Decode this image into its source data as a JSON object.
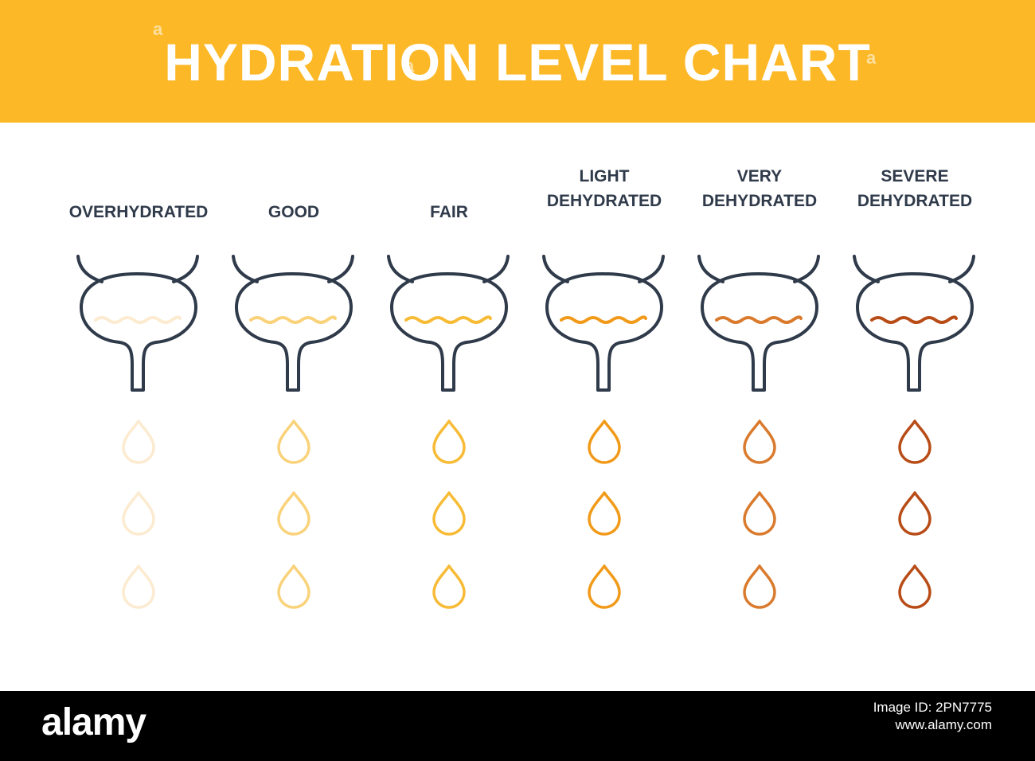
{
  "header": {
    "title": "HYDRATION LEVEL CHART",
    "bg_color": "#FDB827",
    "watermark": "a"
  },
  "levels": [
    {
      "label": "OVERHYDRATED",
      "color": "#FCEBD0"
    },
    {
      "label": "GOOD",
      "color": "#F9D27A"
    },
    {
      "label": "FAIR",
      "color": "#F7BB36"
    },
    {
      "label": "LIGHT DEHYDRATED",
      "label_lines": [
        "LIGHT",
        "DEHYDRATED"
      ],
      "color": "#F19A1A"
    },
    {
      "label": "VERY DEHYDRATED",
      "label_lines": [
        "VERY",
        "DEHYDRATED"
      ],
      "color": "#D97A2D"
    },
    {
      "label": "SEVERE DEHYDRATED",
      "label_lines": [
        "SEVERE",
        "DEHYDRATED"
      ],
      "color": "#B84C17"
    }
  ],
  "icons": {
    "bladder": "bladder-icon",
    "drop": "drop-icon"
  },
  "outline_color": "#2f3a4a",
  "footer": {
    "logo": "alamy",
    "code_line1": "Image ID: 2PN7775",
    "code_line2": "www.alamy.com"
  }
}
